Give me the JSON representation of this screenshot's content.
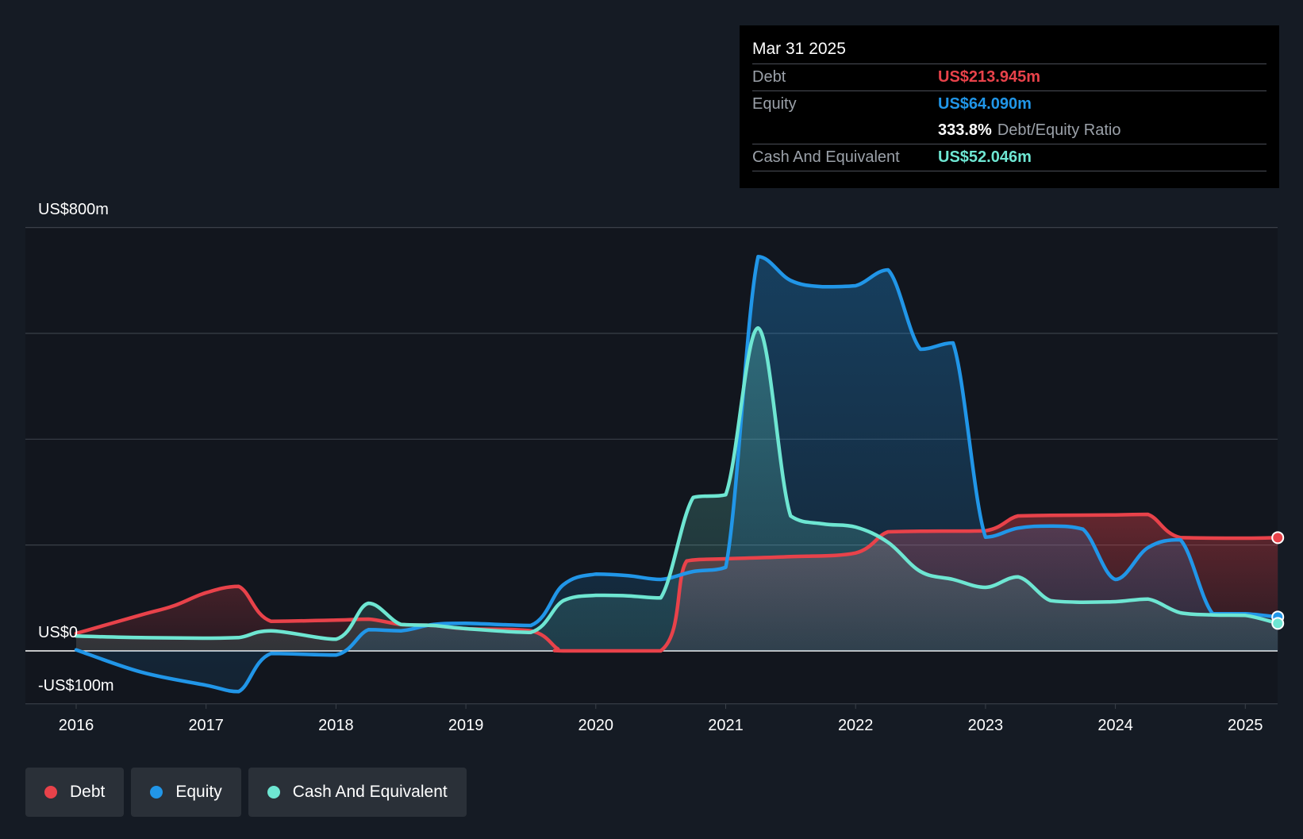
{
  "chart_data": {
    "type": "area",
    "x_label_ticks": [
      "2016",
      "2017",
      "2018",
      "2019",
      "2020",
      "2021",
      "2022",
      "2023",
      "2024",
      "2025"
    ],
    "y_labels": {
      "top": "US$800m",
      "zero": "US$0",
      "bottom": "-US$100m"
    },
    "ylim": [
      -100,
      800
    ],
    "gridlines_m": [
      800,
      600,
      400,
      200,
      0,
      -100
    ],
    "legend_position": "bottom-left",
    "series": [
      {
        "name": "Debt",
        "color": "#e8424a",
        "points": [
          [
            2016.0,
            33
          ],
          [
            2016.5,
            68
          ],
          [
            2016.75,
            85
          ],
          [
            2017.0,
            110
          ],
          [
            2017.25,
            122
          ],
          [
            2017.5,
            56
          ],
          [
            2018.0,
            58
          ],
          [
            2018.25,
            60
          ],
          [
            2018.5,
            50
          ],
          [
            2018.75,
            48
          ],
          [
            2019.0,
            42
          ],
          [
            2019.5,
            38
          ],
          [
            2019.7,
            5
          ],
          [
            2019.75,
            0
          ],
          [
            2020.5,
            0
          ],
          [
            2020.7,
            170
          ],
          [
            2021.0,
            174
          ],
          [
            2021.5,
            178
          ],
          [
            2022.0,
            185
          ],
          [
            2022.25,
            225
          ],
          [
            2022.5,
            226
          ],
          [
            2023.0,
            227
          ],
          [
            2023.25,
            255
          ],
          [
            2023.5,
            256
          ],
          [
            2024.0,
            257
          ],
          [
            2024.25,
            258
          ],
          [
            2024.5,
            214
          ],
          [
            2025.0,
            213
          ],
          [
            2025.25,
            214
          ]
        ]
      },
      {
        "name": "Equity",
        "color": "#2196e8",
        "points": [
          [
            2016.0,
            2
          ],
          [
            2016.5,
            -40
          ],
          [
            2017.0,
            -65
          ],
          [
            2017.25,
            -77
          ],
          [
            2017.5,
            -5
          ],
          [
            2018.0,
            -8
          ],
          [
            2018.25,
            40
          ],
          [
            2018.5,
            38
          ],
          [
            2018.75,
            50
          ],
          [
            2019.0,
            52
          ],
          [
            2019.5,
            48
          ],
          [
            2019.75,
            125
          ],
          [
            2020.0,
            145
          ],
          [
            2020.25,
            142
          ],
          [
            2020.5,
            135
          ],
          [
            2020.75,
            150
          ],
          [
            2021.0,
            158
          ],
          [
            2021.25,
            745
          ],
          [
            2021.5,
            700
          ],
          [
            2021.75,
            688
          ],
          [
            2022.0,
            690
          ],
          [
            2022.25,
            720
          ],
          [
            2022.5,
            570
          ],
          [
            2022.75,
            582
          ],
          [
            2023.0,
            215
          ],
          [
            2023.25,
            232
          ],
          [
            2023.5,
            236
          ],
          [
            2023.75,
            230
          ],
          [
            2024.0,
            135
          ],
          [
            2024.25,
            195
          ],
          [
            2024.5,
            210
          ],
          [
            2024.75,
            70
          ],
          [
            2025.0,
            70
          ],
          [
            2025.25,
            64
          ]
        ]
      },
      {
        "name": "Cash And Equivalent",
        "color": "#6ee6d2",
        "points": [
          [
            2016.0,
            28
          ],
          [
            2016.5,
            25
          ],
          [
            2017.0,
            24
          ],
          [
            2017.25,
            25
          ],
          [
            2017.5,
            38
          ],
          [
            2018.0,
            22
          ],
          [
            2018.25,
            90
          ],
          [
            2018.5,
            50
          ],
          [
            2018.75,
            48
          ],
          [
            2019.0,
            42
          ],
          [
            2019.5,
            35
          ],
          [
            2019.75,
            95
          ],
          [
            2020.0,
            105
          ],
          [
            2020.25,
            104
          ],
          [
            2020.5,
            100
          ],
          [
            2020.75,
            290
          ],
          [
            2021.0,
            295
          ],
          [
            2021.25,
            610
          ],
          [
            2021.5,
            255
          ],
          [
            2021.75,
            240
          ],
          [
            2022.0,
            234
          ],
          [
            2022.25,
            205
          ],
          [
            2022.5,
            150
          ],
          [
            2022.75,
            135
          ],
          [
            2023.0,
            120
          ],
          [
            2023.25,
            140
          ],
          [
            2023.5,
            95
          ],
          [
            2023.75,
            92
          ],
          [
            2024.0,
            93
          ],
          [
            2024.25,
            98
          ],
          [
            2024.5,
            72
          ],
          [
            2024.75,
            68
          ],
          [
            2025.0,
            67
          ],
          [
            2025.25,
            52
          ]
        ]
      }
    ]
  },
  "tooltip": {
    "date": "Mar 31 2025",
    "debt_label": "Debt",
    "debt_value": "US$213.945m",
    "equity_label": "Equity",
    "equity_value": "US$64.090m",
    "ratio_value": "333.8%",
    "ratio_label": "Debt/Equity Ratio",
    "cash_label": "Cash And Equivalent",
    "cash_value": "US$52.046m"
  },
  "legend": [
    {
      "label": "Debt",
      "color": "#e8424a"
    },
    {
      "label": "Equity",
      "color": "#2196e8"
    },
    {
      "label": "Cash And Equivalent",
      "color": "#6ee6d2"
    }
  ]
}
